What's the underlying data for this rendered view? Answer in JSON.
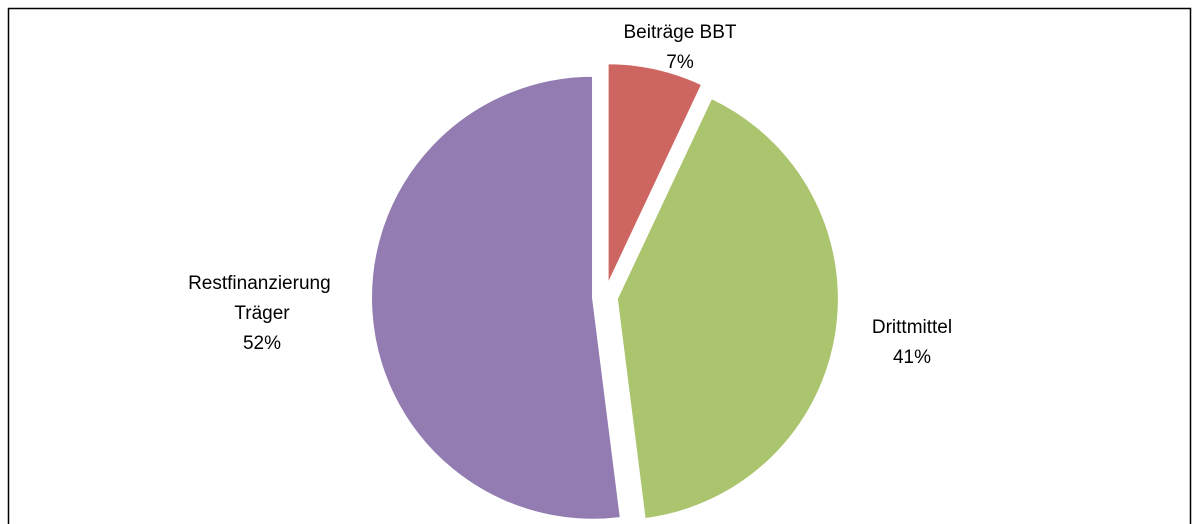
{
  "chart_data": {
    "type": "pie",
    "categories": [
      "Beiträge BBT",
      "Drittmittel",
      "Restfinanzierung Träger"
    ],
    "values": [
      7,
      41,
      52
    ],
    "value_labels": [
      "7%",
      "41%",
      "52%"
    ],
    "colors": [
      "#cd6660",
      "#abc46e",
      "#937cb1"
    ]
  }
}
